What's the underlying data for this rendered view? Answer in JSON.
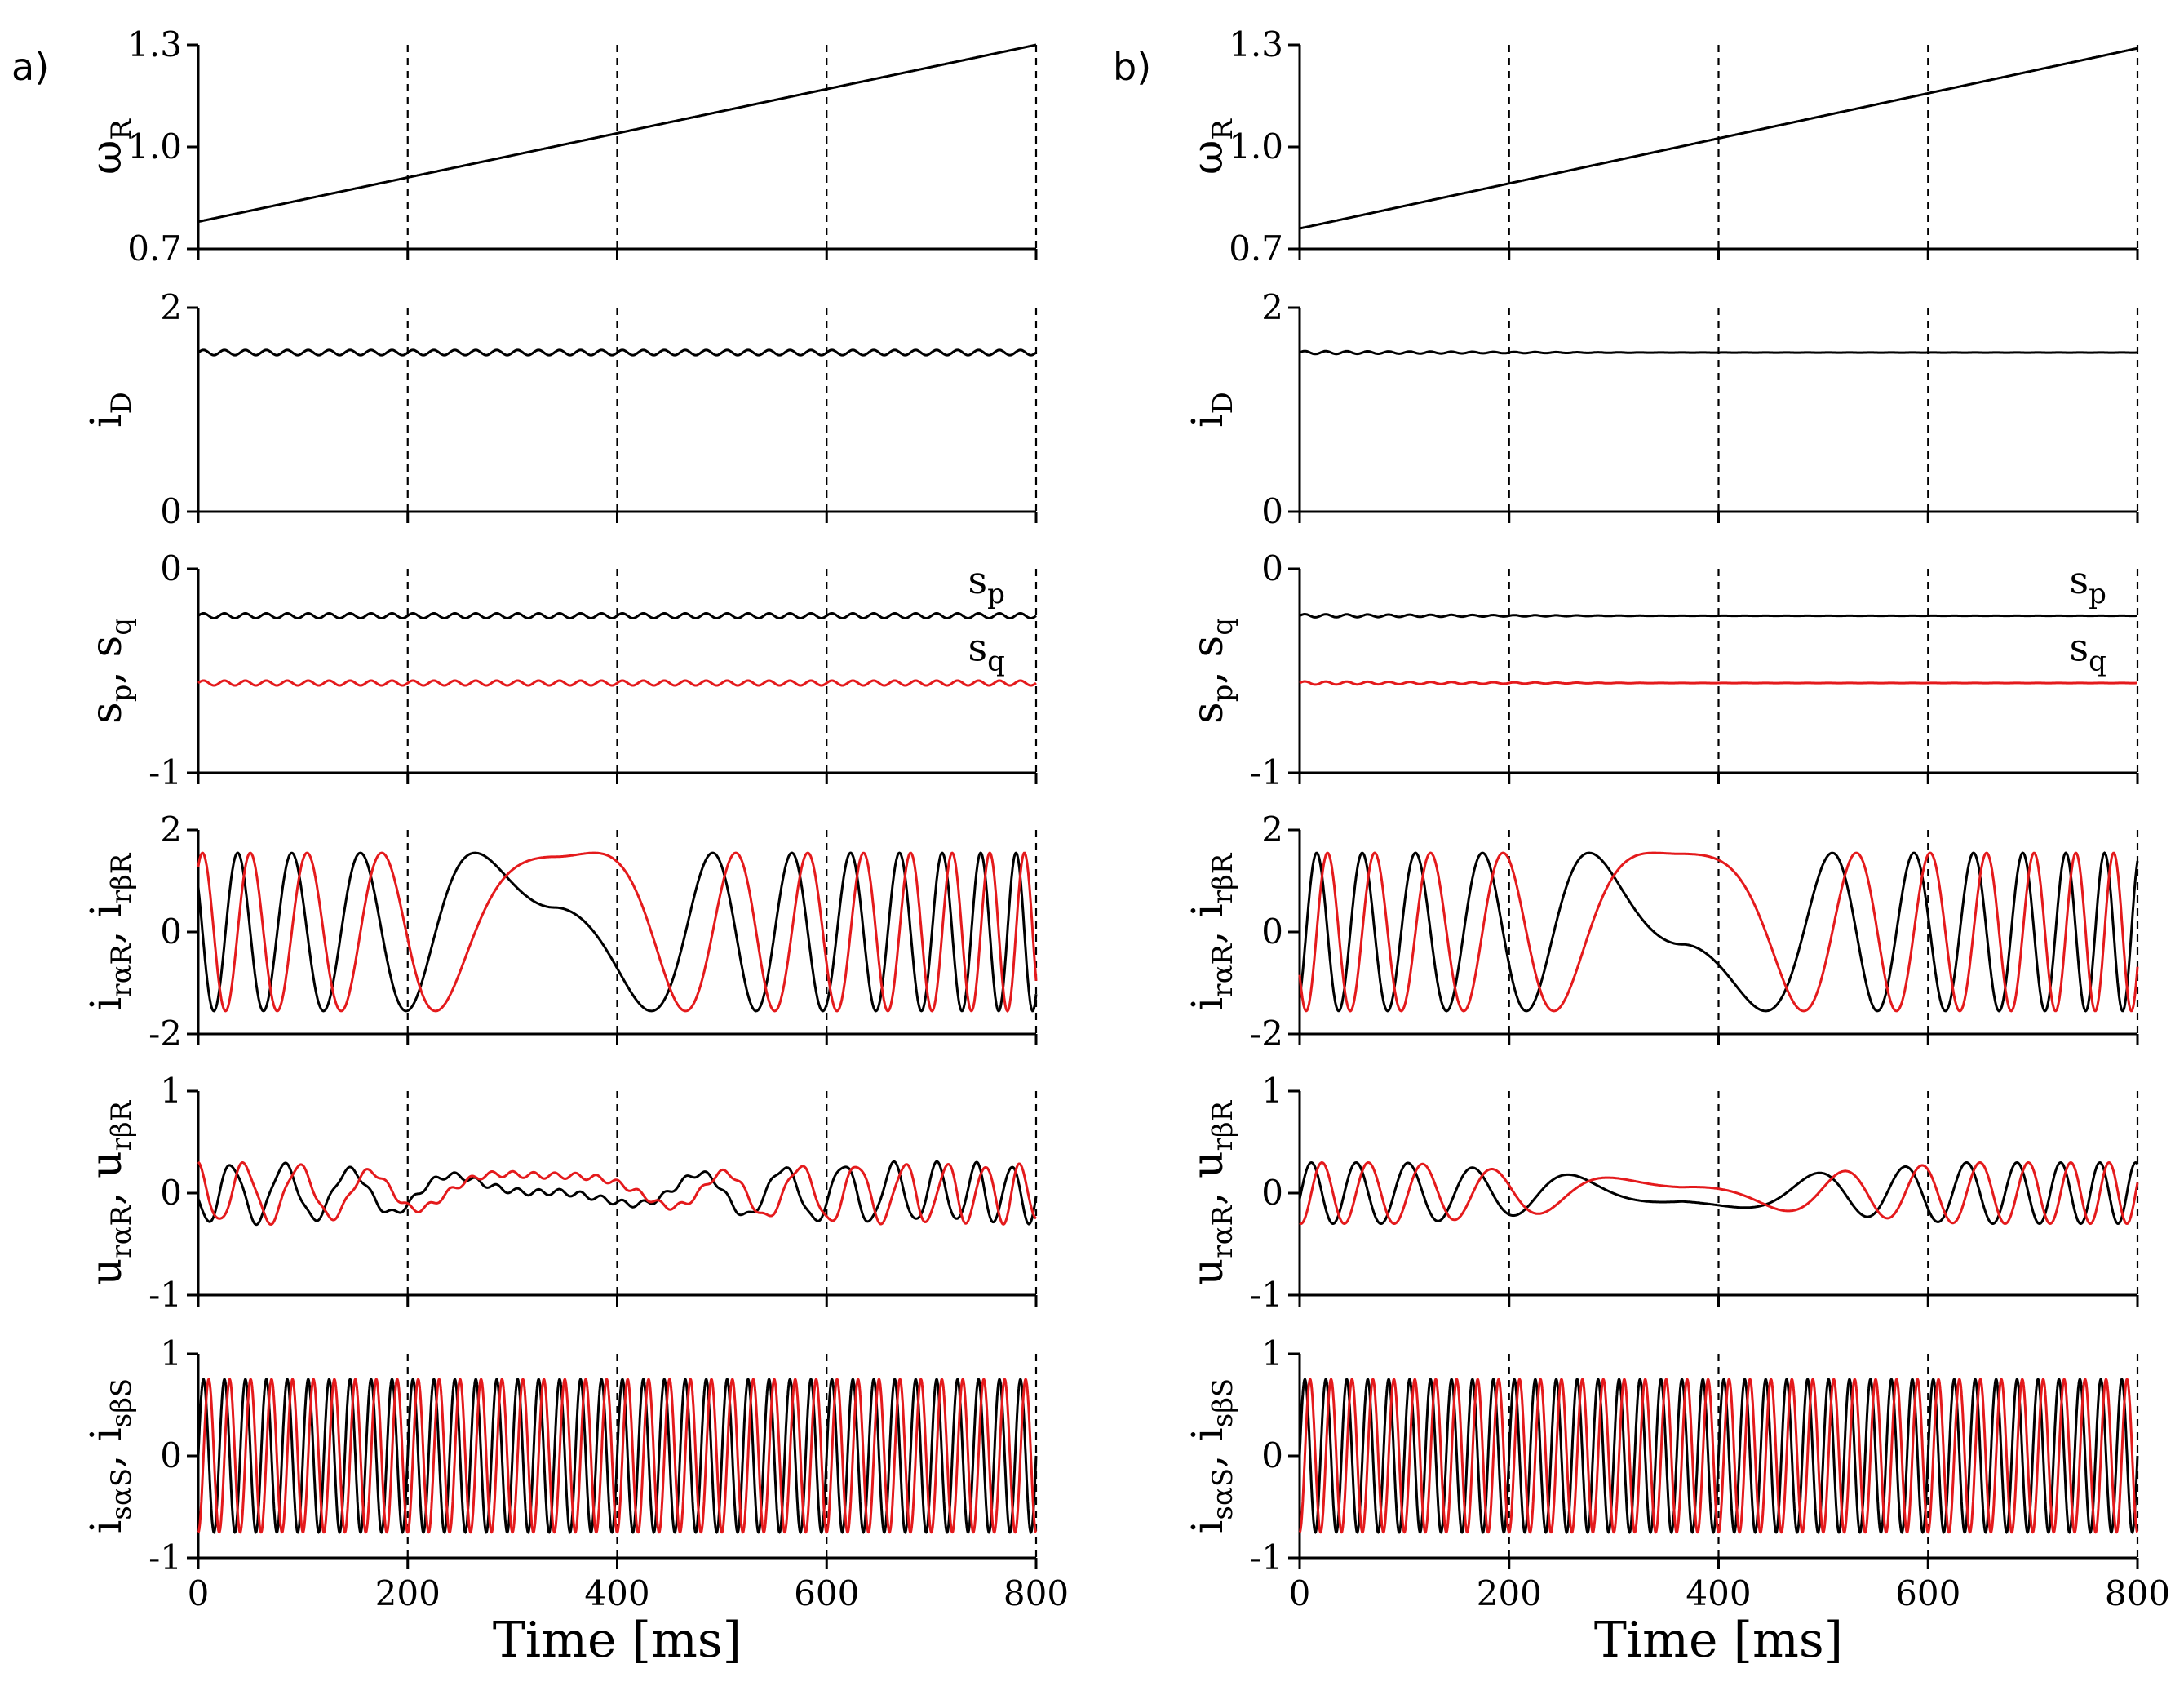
{
  "chart_data": [
    {
      "panel": "a)",
      "type": "line",
      "shared_x": {
        "xlabel": "Time [ms]",
        "xlim": [
          0,
          800
        ],
        "xticks": [
          0,
          200,
          400,
          600,
          800
        ],
        "dashed_gridlines_at": [
          200,
          400,
          600,
          800
        ]
      },
      "subplots": [
        {
          "id": "omega",
          "ylabel": "ω",
          "ylabel_sub": "R",
          "ylim": [
            0.7,
            1.3
          ],
          "yticks": [
            "0.7",
            "1.0",
            "1.3"
          ],
          "series": [
            {
              "name": "omega_R",
              "color": "#000000",
              "kind": "linear",
              "start": 0.78,
              "end": 1.3
            }
          ]
        },
        {
          "id": "iD",
          "ylabel": "i",
          "ylabel_sub": "D",
          "ylim": [
            0,
            2
          ],
          "yticks": [
            "0",
            "2"
          ],
          "series": [
            {
              "name": "i_D",
              "color": "#000000",
              "kind": "ripple",
              "mean": 1.56,
              "amp": 0.025,
              "cycles": 40,
              "decay": 1.0
            }
          ]
        },
        {
          "id": "s",
          "ylabel": "s",
          "ylabel_sub": "p",
          "ylabel2": ", s",
          "ylabel2_sub": "q",
          "ylim": [
            -1,
            0
          ],
          "yticks": [
            "-1",
            "0"
          ],
          "annotations": [
            {
              "text": "s",
              "sub": "p",
              "x": 735,
              "y": -0.12
            },
            {
              "text": "s",
              "sub": "q",
              "x": 735,
              "y": -0.45
            }
          ],
          "series": [
            {
              "name": "s_p",
              "color": "#000000",
              "kind": "ripple",
              "mean": -0.23,
              "amp": 0.012,
              "cycles": 40,
              "decay": 1.0
            },
            {
              "name": "s_q",
              "color": "#e41a1c",
              "kind": "ripple",
              "mean": -0.56,
              "amp": 0.012,
              "cycles": 40,
              "decay": 1.0
            }
          ]
        },
        {
          "id": "ir",
          "ylabel": "i",
          "ylabel_sub": "rαR",
          "ylabel2": ", i",
          "ylabel2_sub": "rβR",
          "ylim": [
            -2,
            2
          ],
          "yticks": [
            "-2",
            "0",
            "2"
          ],
          "series": [
            {
              "name": "i_rαR",
              "color": "#000000",
              "kind": "slip_a"
            },
            {
              "name": "i_rβR",
              "color": "#e41a1c",
              "kind": "slip_a_b"
            }
          ]
        },
        {
          "id": "ur",
          "ylabel": "u",
          "ylabel_sub": "rαR",
          "ylabel2": ", u",
          "ylabel2_sub": "rβR",
          "ylim": [
            -1,
            1
          ],
          "yticks": [
            "-1",
            "0",
            "1"
          ],
          "series": [
            {
              "name": "u_rαR",
              "color": "#000000",
              "kind": "volt_a"
            },
            {
              "name": "u_rβR",
              "color": "#e41a1c",
              "kind": "volt_a_b"
            }
          ]
        },
        {
          "id": "is",
          "ylabel": "i",
          "ylabel_sub": "sαS",
          "ylabel2": ", i",
          "ylabel2_sub": "sβS",
          "ylim": [
            -1,
            1
          ],
          "yticks": [
            "-1",
            "0",
            "1"
          ],
          "series": [
            {
              "name": "i_sαS",
              "color": "#000000",
              "kind": "stator",
              "amp": 0.75,
              "cycles": 40,
              "phase": 0
            },
            {
              "name": "i_sβS",
              "color": "#e41a1c",
              "kind": "stator",
              "amp": 0.75,
              "cycles": 40,
              "phase": -1.5708
            }
          ]
        }
      ]
    },
    {
      "panel": "b)",
      "type": "line",
      "shared_x": {
        "xlabel": "Time [ms]",
        "xlim": [
          0,
          800
        ],
        "xticks": [
          0,
          200,
          400,
          600,
          800
        ],
        "dashed_gridlines_at": [
          200,
          400,
          600,
          800
        ]
      },
      "subplots": [
        {
          "id": "omega",
          "ylabel": "ω",
          "ylabel_sub": "R",
          "ylim": [
            0.7,
            1.3
          ],
          "yticks": [
            "0.7",
            "1.0",
            "1.3"
          ],
          "series": [
            {
              "name": "omega_R",
              "color": "#000000",
              "kind": "linear",
              "start": 0.76,
              "end": 1.29
            }
          ]
        },
        {
          "id": "iD",
          "ylabel": "i",
          "ylabel_sub": "D",
          "ylim": [
            0,
            2
          ],
          "yticks": [
            "0",
            "2"
          ],
          "series": [
            {
              "name": "i_D",
              "color": "#000000",
              "kind": "ripple",
              "mean": 1.56,
              "amp": 0.015,
              "cycles": 40,
              "decay": 0.15
            }
          ]
        },
        {
          "id": "s",
          "ylabel": "s",
          "ylabel_sub": "p",
          "ylabel2": ", s",
          "ylabel2_sub": "q",
          "ylim": [
            -1,
            0
          ],
          "yticks": [
            "-1",
            "0"
          ],
          "annotations": [
            {
              "text": "s",
              "sub": "p",
              "x": 735,
              "y": -0.12
            },
            {
              "text": "s",
              "sub": "q",
              "x": 735,
              "y": -0.45
            }
          ],
          "series": [
            {
              "name": "s_p",
              "color": "#000000",
              "kind": "ripple",
              "mean": -0.23,
              "amp": 0.008,
              "cycles": 40,
              "decay": 0.15
            },
            {
              "name": "s_q",
              "color": "#e41a1c",
              "kind": "ripple",
              "mean": -0.56,
              "amp": 0.008,
              "cycles": 40,
              "decay": 0.15
            }
          ]
        },
        {
          "id": "ir",
          "ylabel": "i",
          "ylabel_sub": "rαR",
          "ylabel2": ", i",
          "ylabel2_sub": "rβR",
          "ylim": [
            -2,
            2
          ],
          "yticks": [
            "-2",
            "0",
            "2"
          ],
          "series": [
            {
              "name": "i_rαR",
              "color": "#000000",
              "kind": "slip_b"
            },
            {
              "name": "i_rβR",
              "color": "#e41a1c",
              "kind": "slip_b_b"
            }
          ]
        },
        {
          "id": "ur",
          "ylabel": "u",
          "ylabel_sub": "rαR",
          "ylabel2": ", u",
          "ylabel2_sub": "rβR",
          "ylim": [
            -1,
            1
          ],
          "yticks": [
            "-1",
            "0",
            "1"
          ],
          "series": [
            {
              "name": "u_rαR",
              "color": "#000000",
              "kind": "volt_b"
            },
            {
              "name": "u_rβR",
              "color": "#e41a1c",
              "kind": "volt_b_b"
            }
          ]
        },
        {
          "id": "is",
          "ylabel": "i",
          "ylabel_sub": "sαS",
          "ylabel2": ", i",
          "ylabel2_sub": "sβS",
          "ylim": [
            -1,
            1
          ],
          "yticks": [
            "-1",
            "0",
            "1"
          ],
          "series": [
            {
              "name": "i_sαS",
              "color": "#000000",
              "kind": "stator",
              "amp": 0.75,
              "cycles": 40,
              "phase": 0
            },
            {
              "name": "i_sβS",
              "color": "#e41a1c",
              "kind": "stator",
              "amp": 0.75,
              "cycles": 40,
              "phase": -1.5708
            }
          ]
        }
      ]
    }
  ]
}
